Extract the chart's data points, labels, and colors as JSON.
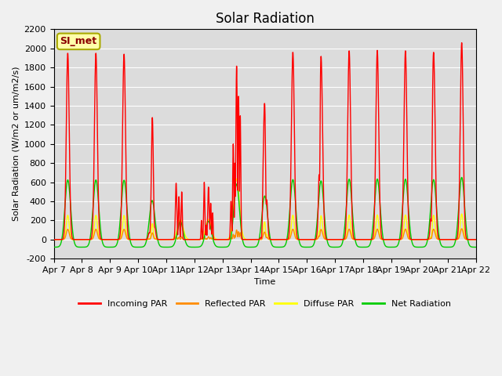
{
  "title": "Solar Radiation",
  "ylabel": "Solar Radiation (W/m2 or um/m2/s)",
  "xlabel": "Time",
  "annotation": "SI_met",
  "ylim": [
    -200,
    2200
  ],
  "xlim": [
    0,
    360
  ],
  "xtick_labels": [
    "Apr 7",
    "Apr 8",
    "Apr 9",
    "Apr 10",
    "Apr 11",
    "Apr 12",
    "Apr 13",
    "Apr 14",
    "Apr 15",
    "Apr 16",
    "Apr 17",
    "Apr 18",
    "Apr 19",
    "Apr 20",
    "Apr 21",
    "Apr 22"
  ],
  "xtick_positions": [
    0,
    24,
    48,
    72,
    96,
    120,
    144,
    168,
    192,
    216,
    240,
    264,
    288,
    312,
    336,
    360
  ],
  "ytick_labels": [
    "-200",
    "0",
    "200",
    "400",
    "600",
    "800",
    "1000",
    "1200",
    "1400",
    "1600",
    "1800",
    "2000",
    "2200"
  ],
  "ytick_values": [
    -200,
    0,
    200,
    400,
    600,
    800,
    1000,
    1200,
    1400,
    1600,
    1800,
    2000,
    2200
  ],
  "colors": {
    "incoming_par": "#FF0000",
    "reflected_par": "#FF8C00",
    "diffuse_par": "#FFFF00",
    "net_radiation": "#00CC00",
    "background": "#DCDCDC",
    "grid": "#FFFFFF"
  },
  "legend_labels": [
    "Incoming PAR",
    "Reflected PAR",
    "Diffuse PAR",
    "Net Radiation"
  ],
  "line_width": 1.0,
  "title_fontsize": 12,
  "axis_fontsize": 8,
  "annotation_fontsize": 9
}
